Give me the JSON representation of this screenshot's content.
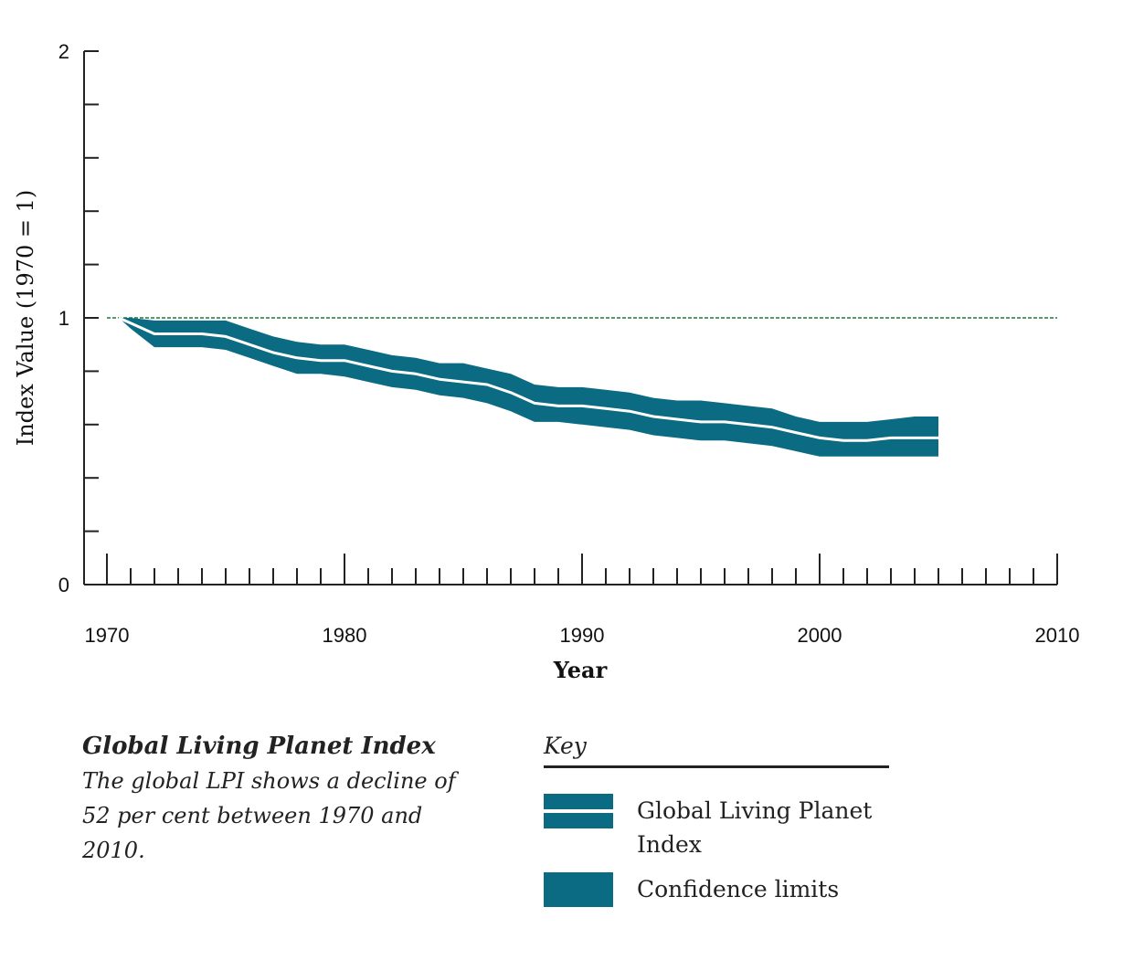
{
  "chart_data": {
    "type": "area",
    "title": "Global Living Planet Index",
    "xlabel": "Year",
    "ylabel": "Index Value (1970 = 1)",
    "xlim": [
      1970,
      2010
    ],
    "ylim": [
      0,
      2
    ],
    "x_ticks": [
      1970,
      1980,
      1990,
      2000,
      2010
    ],
    "y_ticks": [
      0,
      1,
      2
    ],
    "x_minor_step": 1,
    "y_minor_step": 0.2,
    "reference_line": {
      "y": 1,
      "color": "#1e7a35",
      "style": "dashed"
    },
    "colors": {
      "band": "#0b6b82",
      "index_line": "#ffffff"
    },
    "series": [
      {
        "name": "Global Living Planet Index",
        "x": [
          1970.5,
          1971,
          1972,
          1973,
          1974,
          1975,
          1976,
          1977,
          1978,
          1979,
          1980,
          1981,
          1982,
          1983,
          1984,
          1985,
          1986,
          1987,
          1988,
          1989,
          1990,
          1991,
          1992,
          1993,
          1994,
          1995,
          1996,
          1997,
          1998,
          1999,
          2000,
          2001,
          2002,
          2003,
          2004,
          2005
        ],
        "y": [
          1.0,
          0.98,
          0.94,
          0.94,
          0.94,
          0.93,
          0.9,
          0.87,
          0.85,
          0.84,
          0.84,
          0.82,
          0.8,
          0.79,
          0.77,
          0.76,
          0.75,
          0.72,
          0.68,
          0.67,
          0.67,
          0.66,
          0.65,
          0.63,
          0.62,
          0.61,
          0.61,
          0.6,
          0.59,
          0.57,
          0.55,
          0.54,
          0.54,
          0.55,
          0.55,
          0.55
        ]
      },
      {
        "name": "Confidence limits (upper)",
        "x": [
          1970.5,
          1971,
          1972,
          1973,
          1974,
          1975,
          1976,
          1977,
          1978,
          1979,
          1980,
          1981,
          1982,
          1983,
          1984,
          1985,
          1986,
          1987,
          1988,
          1989,
          1990,
          1991,
          1992,
          1993,
          1994,
          1995,
          1996,
          1997,
          1998,
          1999,
          2000,
          2001,
          2002,
          2003,
          2004,
          2005
        ],
        "y": [
          1.0,
          1.0,
          0.99,
          0.99,
          0.99,
          0.99,
          0.96,
          0.93,
          0.91,
          0.9,
          0.9,
          0.88,
          0.86,
          0.85,
          0.83,
          0.83,
          0.81,
          0.79,
          0.75,
          0.74,
          0.74,
          0.73,
          0.72,
          0.7,
          0.69,
          0.69,
          0.68,
          0.67,
          0.66,
          0.63,
          0.61,
          0.61,
          0.61,
          0.62,
          0.63,
          0.63
        ]
      },
      {
        "name": "Confidence limits (lower)",
        "x": [
          1970.5,
          1971,
          1972,
          1973,
          1974,
          1975,
          1976,
          1977,
          1978,
          1979,
          1980,
          1981,
          1982,
          1983,
          1984,
          1985,
          1986,
          1987,
          1988,
          1989,
          1990,
          1991,
          1992,
          1993,
          1994,
          1995,
          1996,
          1997,
          1998,
          1999,
          2000,
          2001,
          2002,
          2003,
          2004,
          2005
        ],
        "y": [
          1.0,
          0.96,
          0.89,
          0.89,
          0.89,
          0.88,
          0.85,
          0.82,
          0.79,
          0.79,
          0.78,
          0.76,
          0.74,
          0.73,
          0.71,
          0.7,
          0.68,
          0.65,
          0.61,
          0.61,
          0.6,
          0.59,
          0.58,
          0.56,
          0.55,
          0.54,
          0.54,
          0.53,
          0.52,
          0.5,
          0.48,
          0.48,
          0.48,
          0.48,
          0.48,
          0.48
        ]
      }
    ]
  },
  "caption": {
    "title": "Global Living Planet Index",
    "text": "The global LPI shows a decline of 52 per cent between 1970 and 2010."
  },
  "key": {
    "title": "Key",
    "items": [
      {
        "label": "Global Living Planet Index",
        "icon": "band-with-line"
      },
      {
        "label": "Confidence limits",
        "icon": "band"
      }
    ]
  }
}
